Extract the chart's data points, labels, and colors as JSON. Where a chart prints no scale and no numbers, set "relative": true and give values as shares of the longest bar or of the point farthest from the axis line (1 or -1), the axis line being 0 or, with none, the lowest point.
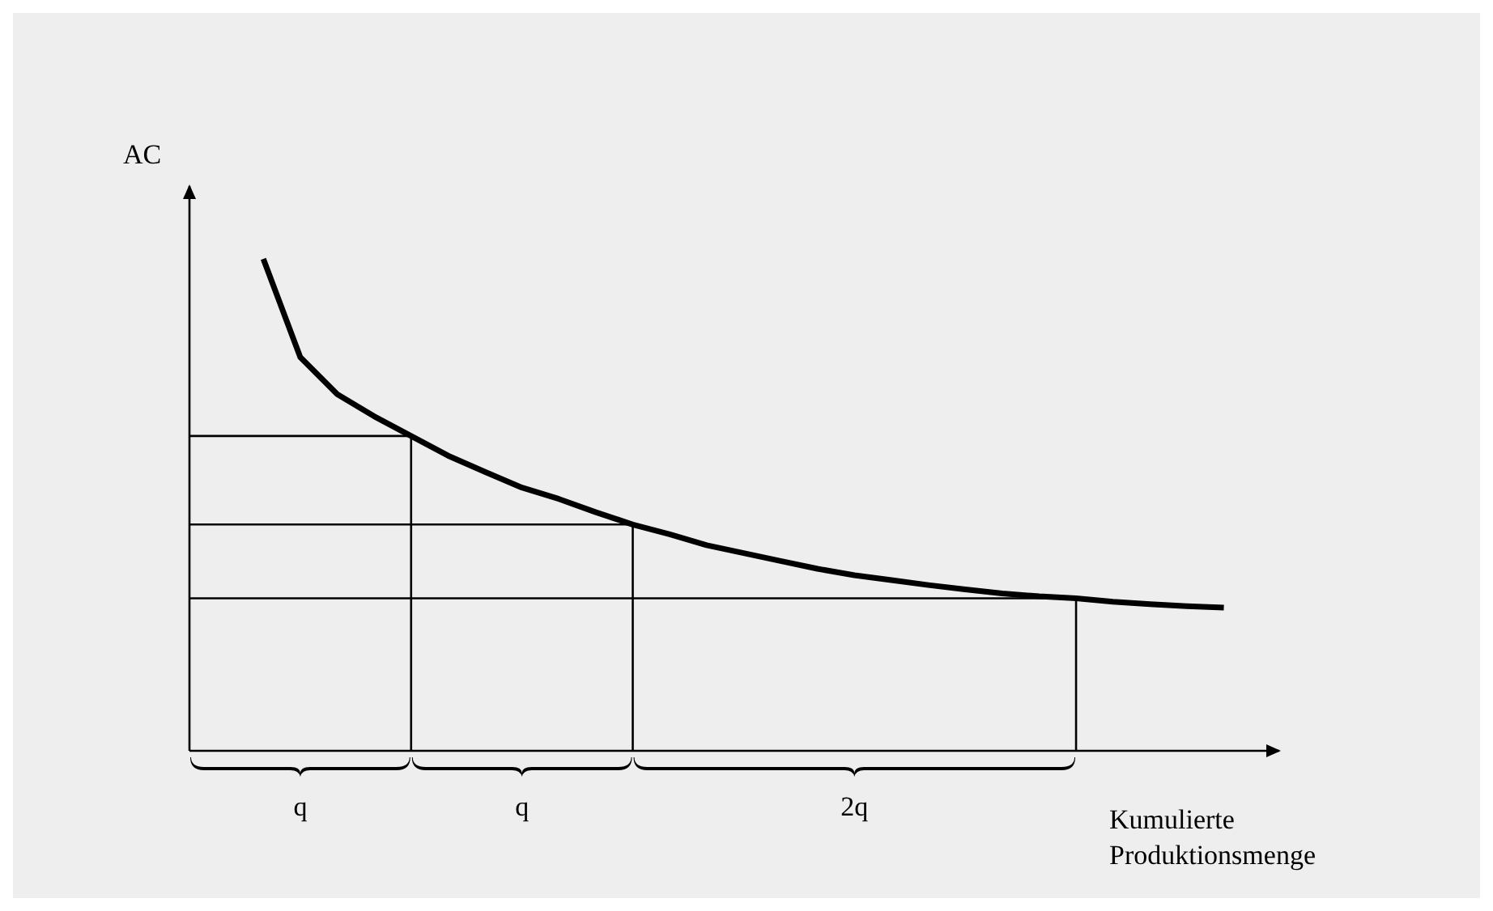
{
  "chart_data": {
    "type": "line",
    "relative": true,
    "xlabel": "Kumulierte Produktionsmenge",
    "ylabel": "AC",
    "categories": [
      null,
      null,
      null,
      null,
      null,
      null,
      null,
      null,
      null,
      null,
      null,
      null,
      null,
      null,
      null,
      null,
      null,
      null,
      null,
      null,
      null,
      null,
      null,
      null,
      null,
      null,
      null
    ],
    "series": [
      {
        "color": "#000000",
        "values": [
          1.0,
          0.8,
          0.725,
          0.68,
          0.64,
          0.6,
          0.567,
          0.535,
          0.512,
          0.485,
          0.46,
          0.44,
          0.418,
          0.402,
          0.386,
          0.37,
          0.357,
          0.347,
          0.337,
          0.328,
          0.32,
          0.314,
          0.31,
          0.303,
          0.298,
          0.294,
          0.291
        ]
      }
    ],
    "grid": false,
    "marker": "none",
    "line_style": "solid",
    "ref_lines": [
      {
        "axis": "y",
        "value": 0.64
      },
      {
        "axis": "y",
        "value": 0.46
      },
      {
        "axis": "y",
        "value": 0.31
      }
    ],
    "annotations": [
      "q",
      "q",
      "2q"
    ]
  }
}
